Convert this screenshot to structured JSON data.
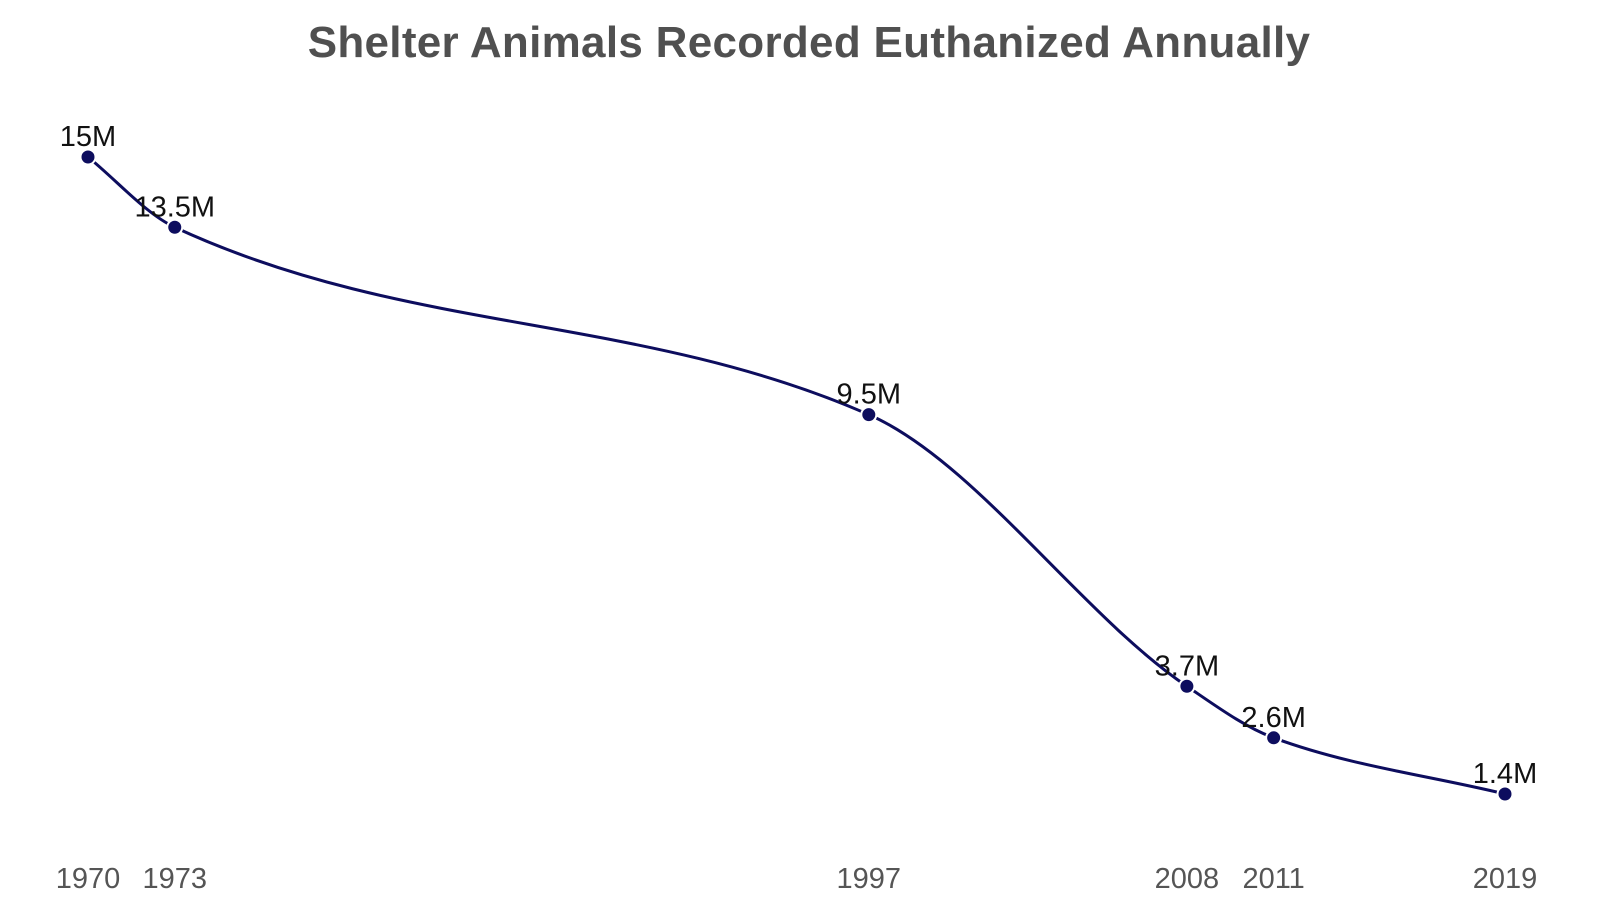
{
  "chart_data": {
    "type": "line",
    "title": "Shelter Animals Recorded Euthanized Annually",
    "xlabel": "",
    "ylabel": "",
    "x": [
      1970,
      1973,
      1997,
      2008,
      2011,
      2019
    ],
    "x_tick_labels": [
      "1970",
      "1973",
      "1997",
      "2008",
      "2011",
      "2019"
    ],
    "series": [
      {
        "values": [
          15,
          13.5,
          9.5,
          3.7,
          2.6,
          1.4
        ],
        "data_labels": [
          "15M",
          "13.5M",
          "9.5M",
          "3.7M",
          "2.6M",
          "1.4M"
        ],
        "color": "#0d0d5e"
      }
    ],
    "grid": false,
    "legend": "none",
    "y_axis_visible": false,
    "smooth": true
  }
}
